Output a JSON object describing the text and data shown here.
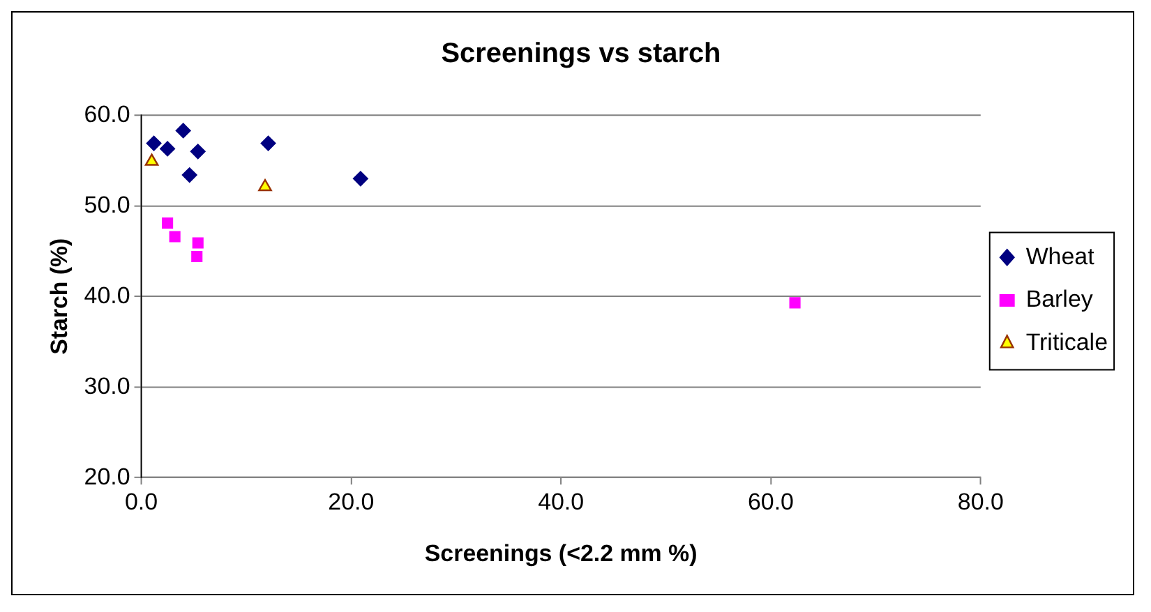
{
  "chart_data": {
    "type": "scatter",
    "title": "Screenings vs starch",
    "xlabel": "Screenings (<2.2 mm %)",
    "ylabel": "Starch (%)",
    "series": [
      {
        "name": "Wheat",
        "color": "#000080",
        "marker": "diamond",
        "x": [
          1.2,
          2.5,
          4.0,
          5.4,
          4.6,
          12.1,
          20.9
        ],
        "values": [
          56.9,
          56.3,
          58.3,
          56.0,
          53.4,
          56.9,
          53.0
        ]
      },
      {
        "name": "Barley",
        "color": "#ff00ff",
        "marker": "square",
        "x": [
          2.5,
          3.2,
          5.4,
          5.3,
          62.3
        ],
        "values": [
          48.1,
          46.6,
          45.9,
          44.4,
          39.3
        ]
      },
      {
        "name": "Triticale",
        "color": "#ffff00",
        "marker": "triangle",
        "x": [
          1.0,
          11.8
        ],
        "values": [
          54.9,
          52.1
        ]
      }
    ],
    "xlim": [
      0,
      80
    ],
    "xticks": [
      {
        "value": 0,
        "label": "0.0"
      },
      {
        "value": 20,
        "label": "20.0"
      },
      {
        "value": 40,
        "label": "40.0"
      },
      {
        "value": 60,
        "label": "60.0"
      },
      {
        "value": 80,
        "label": "80.0"
      }
    ],
    "ylim": [
      20,
      60
    ],
    "yticks": [
      {
        "value": 20,
        "label": "20.0"
      },
      {
        "value": 30,
        "label": "30.0"
      },
      {
        "value": 40,
        "label": "40.0"
      },
      {
        "value": 50,
        "label": "50.0"
      },
      {
        "value": 60,
        "label": "60.0"
      }
    ],
    "grid": "y",
    "legend": "right"
  }
}
